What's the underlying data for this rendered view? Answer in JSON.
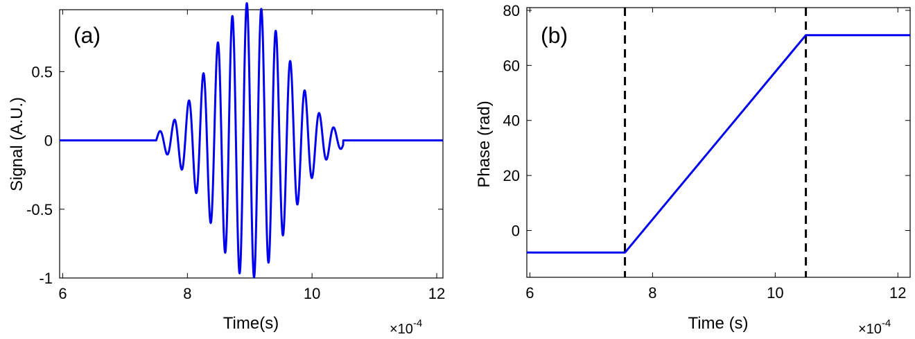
{
  "chart_data": [
    {
      "type": "line",
      "panel_label": "(a)",
      "xlabel": "Time(s)",
      "x_multiplier": "×10",
      "x_multiplier_exp": "-4",
      "ylabel": "Signal (A.U.)",
      "xlim": [
        5.95,
        12.1
      ],
      "ylim": [
        -1,
        0.95
      ],
      "xticks": [
        6,
        8,
        10,
        12
      ],
      "xtick_labels": [
        "6",
        "8",
        "10",
        "12"
      ],
      "yticks": [
        -1,
        -0.5,
        0,
        0.5
      ],
      "ytick_labels": [
        "-1",
        "-0.5",
        "0",
        "0.5"
      ],
      "grid": false,
      "series": [
        {
          "color": "#0000ee",
          "kind": "gaussian_modulated_sine_burst",
          "burst_start": 7.5,
          "burst_end": 10.5,
          "center": 9.0,
          "frequency_per_1e-4s": 4.3,
          "peak": 1.0,
          "envelope_sigma": 0.62
        }
      ]
    },
    {
      "type": "line",
      "panel_label": "(b)",
      "xlabel": "Time (s)",
      "x_multiplier": "×10",
      "x_multiplier_exp": "-4",
      "ylabel": "Phase (rad)",
      "xlim": [
        5.95,
        12.2
      ],
      "ylim": [
        -17,
        81
      ],
      "xticks": [
        6,
        8,
        10,
        12
      ],
      "xtick_labels": [
        "6",
        "8",
        "10",
        "12"
      ],
      "yticks": [
        0,
        20,
        40,
        60,
        80
      ],
      "ytick_labels": [
        "0",
        "20",
        "40",
        "60",
        "80"
      ],
      "grid": false,
      "series": [
        {
          "color": "#0000ee",
          "x": [
            5.95,
            7.55,
            10.5,
            12.2
          ],
          "y": [
            -8,
            -8,
            71,
            71
          ]
        }
      ],
      "vlines": [
        7.55,
        10.5
      ]
    }
  ]
}
